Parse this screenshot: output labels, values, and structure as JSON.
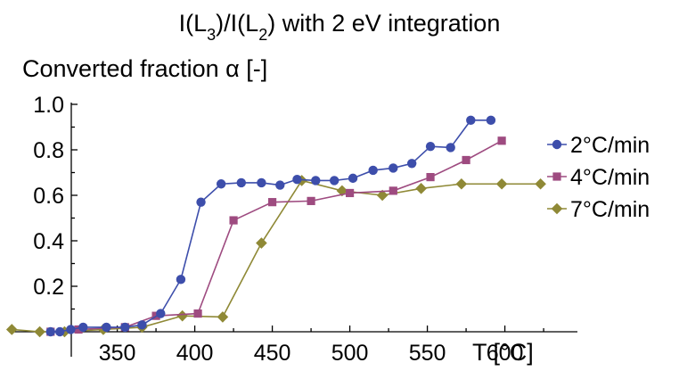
{
  "chart_data": {
    "type": "line",
    "title_parts": {
      "p1": "I(L",
      "s1": "3",
      "p2": ")/I(L",
      "s2": "2",
      "p3": ") with 2 eV integration"
    },
    "ylabel": "Converted fraction α [-]",
    "xlabel": "T [°C]",
    "xlim": [
      290,
      645
    ],
    "ylim": [
      -0.02,
      1.02
    ],
    "x_ticks": [
      350,
      400,
      450,
      500,
      550,
      600
    ],
    "x_tick_labels": [
      "350",
      "400",
      "450",
      "500",
      "550",
      "600"
    ],
    "y_ticks": [
      0.2,
      0.4,
      0.6,
      0.8,
      1.0
    ],
    "y_tick_labels": [
      "0.2",
      "0.4",
      "0.6",
      "0.8",
      "1.0"
    ],
    "legend_position": "right",
    "series": [
      {
        "name": "2°C/min",
        "color": "#3d4eab",
        "marker": "circle",
        "x": [
          307,
          313,
          320,
          328,
          343,
          355,
          366,
          378,
          391,
          404,
          417,
          430,
          443,
          455,
          466,
          478,
          490,
          502,
          515,
          528,
          540,
          552,
          565,
          578,
          591
        ],
        "y": [
          0.0,
          0.0,
          0.01,
          0.02,
          0.02,
          0.02,
          0.03,
          0.08,
          0.23,
          0.57,
          0.65,
          0.655,
          0.655,
          0.645,
          0.67,
          0.665,
          0.665,
          0.675,
          0.71,
          0.72,
          0.74,
          0.815,
          0.81,
          0.93,
          0.93
        ]
      },
      {
        "name": "4°C/min",
        "color": "#9e4b80",
        "marker": "square",
        "x": [
          307,
          325,
          355,
          375,
          402,
          425,
          450,
          475,
          500,
          528,
          552,
          575,
          598
        ],
        "y": [
          0.0,
          0.01,
          0.02,
          0.07,
          0.08,
          0.49,
          0.57,
          0.575,
          0.61,
          0.62,
          0.68,
          0.755,
          0.84
        ]
      },
      {
        "name": "7°C/min",
        "color": "#8f8936",
        "marker": "diamond",
        "x": [
          282,
          300,
          316,
          341,
          366,
          392,
          418,
          443,
          469,
          495,
          521,
          546,
          572,
          598,
          623
        ],
        "y": [
          0.01,
          0.0,
          0.0,
          0.01,
          0.02,
          0.07,
          0.065,
          0.39,
          0.665,
          0.62,
          0.6,
          0.63,
          0.65,
          0.65,
          0.65
        ]
      }
    ]
  }
}
